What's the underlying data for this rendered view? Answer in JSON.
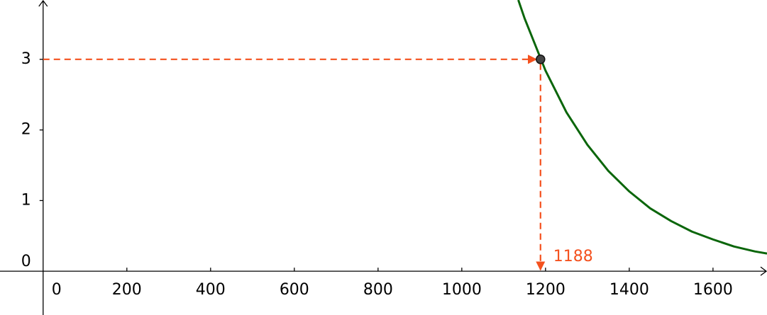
{
  "chart_data": {
    "type": "line",
    "xlim": [
      -103,
      1729
    ],
    "ylim": [
      -0.62,
      3.84
    ],
    "xticks": [
      0,
      200,
      400,
      600,
      800,
      1000,
      1200,
      1400,
      1600
    ],
    "yticks": [
      0,
      1,
      2,
      3
    ],
    "series": [
      {
        "color": "#0b660b",
        "x": [
          1135,
          1150,
          1200,
          1250,
          1300,
          1350,
          1400,
          1450,
          1500,
          1550,
          1600,
          1650,
          1700,
          1729
        ],
        "values": [
          3.84,
          3.58,
          2.84,
          2.25,
          1.79,
          1.42,
          1.13,
          0.89,
          0.71,
          0.56,
          0.45,
          0.35,
          0.28,
          0.25
        ]
      }
    ],
    "point": {
      "x": 1188,
      "y": 3,
      "color": "#444444",
      "guide_color": "#f4511e"
    }
  }
}
